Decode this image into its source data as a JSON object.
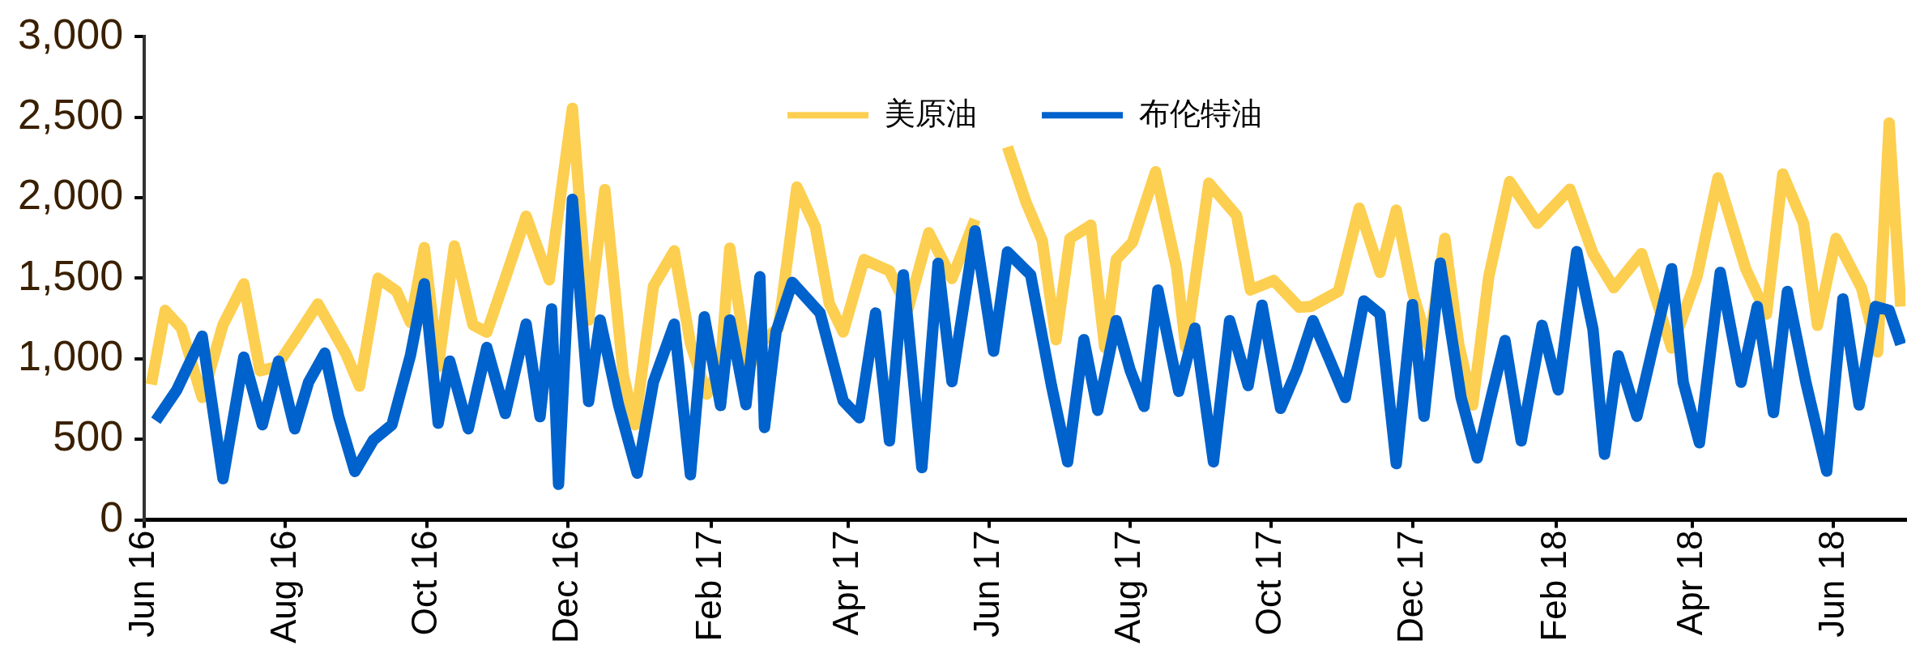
{
  "chart_data": {
    "type": "line",
    "legend": "top",
    "grid": false,
    "marker": "none",
    "line_style": "solid",
    "xlim": [
      "2016-06-01",
      "2018-07-02"
    ],
    "xticks": [
      {
        "value": "2016-06-01",
        "label": "Jun 16"
      },
      {
        "value": "2016-08-01",
        "label": "Aug 16"
      },
      {
        "value": "2016-10-01",
        "label": "Oct 16"
      },
      {
        "value": "2016-12-01",
        "label": "Dec 16"
      },
      {
        "value": "2017-02-01",
        "label": "Feb 17"
      },
      {
        "value": "2017-04-01",
        "label": "Apr 17"
      },
      {
        "value": "2017-06-01",
        "label": "Jun 17"
      },
      {
        "value": "2017-08-01",
        "label": "Aug 17"
      },
      {
        "value": "2017-10-01",
        "label": "Oct 17"
      },
      {
        "value": "2017-12-01",
        "label": "Dec 17"
      },
      {
        "value": "2018-02-01",
        "label": "Feb 18"
      },
      {
        "value": "2018-04-01",
        "label": "Apr 18"
      },
      {
        "value": "2018-06-01",
        "label": "Jun 18"
      }
    ],
    "ylim": [
      0,
      3000
    ],
    "yticks": [
      0,
      {
        "value": 500,
        "label": "500"
      },
      {
        "value": 1000,
        "label": "1,000"
      },
      {
        "value": 1500,
        "label": "1,500"
      },
      {
        "value": 2000,
        "label": "2,000"
      },
      {
        "value": 2500,
        "label": "2,500"
      },
      {
        "value": 3000,
        "label": "3,000"
      }
    ],
    "series": [
      {
        "name": "美原油",
        "color": "#fdcf50",
        "x": [
          "2016-06-04",
          "2016-06-10",
          "2016-06-17",
          "2016-06-26",
          "2016-07-05",
          "2016-07-14",
          "2016-07-21",
          "2016-07-28",
          "2016-08-05",
          "2016-08-15",
          "2016-08-27",
          "2016-09-02",
          "2016-09-10",
          "2016-09-18",
          "2016-09-24",
          "2016-09-30",
          "2016-10-06",
          "2016-10-13",
          "2016-10-21",
          "2016-10-27",
          "2016-11-04",
          "2016-11-13",
          "2016-11-23",
          "2016-12-03",
          "2016-12-10",
          "2016-12-17",
          "2016-12-25",
          "2016-12-30",
          "2017-01-07",
          "2017-01-16",
          "2017-01-23",
          "2017-01-30",
          "2017-02-05",
          "2017-02-09",
          "2017-02-17",
          "2017-02-22",
          "2017-03-02",
          "2017-03-10",
          "2017-03-18",
          "2017-03-24",
          "2017-03-30",
          "2017-04-08",
          "2017-04-19",
          "2017-04-27",
          "2017-05-06",
          "2017-05-16",
          "2017-05-26",
          "2017-06-03",
          "2017-06-09",
          "2017-06-17",
          "2017-06-24",
          "2017-06-30",
          "2017-07-06",
          "2017-07-15",
          "2017-07-21",
          "2017-07-26",
          "2017-08-02",
          "2017-08-12",
          "2017-08-21",
          "2017-08-25",
          "2017-09-04",
          "2017-09-16",
          "2017-09-22",
          "2017-10-02",
          "2017-10-13",
          "2017-10-18",
          "2017-10-30",
          "2017-11-08",
          "2017-11-17",
          "2017-11-24",
          "2017-12-01",
          "2017-12-08",
          "2017-12-15",
          "2017-12-21",
          "2017-12-27",
          "2018-01-03",
          "2018-01-12",
          "2018-01-24",
          "2018-02-07",
          "2018-02-17",
          "2018-02-26",
          "2018-03-10",
          "2018-03-23",
          "2018-04-03",
          "2018-04-12",
          "2018-04-24",
          "2018-05-03",
          "2018-05-10",
          "2018-05-19",
          "2018-05-25",
          "2018-06-02",
          "2018-06-13",
          "2018-06-20",
          "2018-06-25",
          "2018-06-30"
        ],
        "values": [
          840,
          1300,
          1190,
          760,
          1210,
          1465,
          925,
          950,
          1120,
          1340,
          1035,
          830,
          1500,
          1420,
          1225,
          1690,
          950,
          1700,
          1210,
          1165,
          1500,
          1885,
          1490,
          2555,
          1240,
          2050,
          900,
          590,
          1450,
          1670,
          1095,
          780,
          950,
          1687,
          930,
          1100,
          1190,
          2066,
          1818,
          1343,
          1166,
          1616,
          1545,
          1308,
          1782,
          1498,
          1865,
          null,
          2315,
          1972,
          1735,
          1118,
          1747,
          1830,
          1071,
          1616,
          1723,
          2161,
          1569,
          1071,
          2090,
          1889,
          1427,
          1486,
          1320,
          1324,
          1418,
          1935,
          1536,
          1923,
          1418,
          1077,
          1747,
          1089,
          713,
          1512,
          2100,
          1841,
          2053,
          1653,
          1441,
          1653,
          1066,
          1512,
          2123,
          1559,
          1277,
          2147,
          1841,
          1207,
          1747,
          1441,
          1042,
          2464,
          1324
        ]
      },
      {
        "name": "布伦特油",
        "color": "#0062cc",
        "x": [
          "2016-06-06",
          "2016-06-15",
          "2016-06-26",
          "2016-07-05",
          "2016-07-14",
          "2016-07-22",
          "2016-07-29",
          "2016-08-05",
          "2016-08-11",
          "2016-08-18",
          "2016-08-24",
          "2016-08-31",
          "2016-09-08",
          "2016-09-16",
          "2016-09-24",
          "2016-09-30",
          "2016-10-06",
          "2016-10-11",
          "2016-10-19",
          "2016-10-27",
          "2016-11-04",
          "2016-11-13",
          "2016-11-19",
          "2016-11-24",
          "2016-11-27",
          "2016-12-03",
          "2016-12-10",
          "2016-12-15",
          "2016-12-23",
          "2016-12-31",
          "2017-01-07",
          "2017-01-16",
          "2017-01-23",
          "2017-01-29",
          "2017-02-05",
          "2017-02-09",
          "2017-02-16",
          "2017-02-22",
          "2017-02-24",
          "2017-03-01",
          "2017-03-08",
          "2017-03-20",
          "2017-03-30",
          "2017-04-06",
          "2017-04-13",
          "2017-04-19",
          "2017-04-25",
          "2017-05-03",
          "2017-05-10",
          "2017-05-16",
          "2017-05-26",
          "2017-06-03",
          "2017-06-09",
          "2017-06-19",
          "2017-06-28",
          "2017-07-05",
          "2017-07-12",
          "2017-07-18",
          "2017-07-26",
          "2017-08-01",
          "2017-08-07",
          "2017-08-13",
          "2017-08-22",
          "2017-08-29",
          "2017-09-06",
          "2017-09-13",
          "2017-09-21",
          "2017-09-27",
          "2017-10-05",
          "2017-10-12",
          "2017-10-19",
          "2017-10-26",
          "2017-11-02",
          "2017-11-10",
          "2017-11-17",
          "2017-11-24",
          "2017-12-01",
          "2017-12-06",
          "2017-12-13",
          "2017-12-22",
          "2017-12-29",
          "2018-01-04",
          "2018-01-10",
          "2018-01-17",
          "2018-01-26",
          "2018-02-02",
          "2018-02-10",
          "2018-02-17",
          "2018-02-22",
          "2018-02-28",
          "2018-03-08",
          "2018-03-15",
          "2018-03-23",
          "2018-03-28",
          "2018-04-04",
          "2018-04-13",
          "2018-04-22",
          "2018-04-29",
          "2018-05-06",
          "2018-05-12",
          "2018-05-20",
          "2018-05-29",
          "2018-06-05",
          "2018-06-12",
          "2018-06-19",
          "2018-06-25",
          "2018-06-30"
        ],
        "values": [
          615,
          805,
          1140,
          255,
          1010,
          590,
          985,
          565,
          855,
          1035,
          640,
          300,
          495,
          590,
          1020,
          1465,
          600,
          985,
          565,
          1070,
          660,
          1215,
          640,
          1310,
          220,
          1990,
          735,
          1240,
          710,
          290,
          855,
          1215,
          280,
          1260,
          710,
          1240,
          715,
          1509,
          573,
          1166,
          1474,
          1284,
          739,
          633,
          1284,
          490,
          1521,
          324,
          1592,
          858,
          1794,
          1047,
          1663,
          1521,
          834,
          360,
          1118,
          680,
          1237,
          929,
          704,
          1427,
          798,
          1190,
          360,
          1237,
          834,
          1332,
          692,
          929,
          1237,
          1000,
          760,
          1359,
          1277,
          349,
          1336,
          643,
          1594,
          760,
          384,
          760,
          1113,
          490,
          1207,
          807,
          1665,
          1183,
          407,
          1018,
          643,
          1077,
          1559,
          854,
          478,
          1536,
          854,
          1324,
          666,
          1418,
          854,
          302,
          1371,
          713,
          1324,
          1301,
          1089
        ]
      }
    ]
  }
}
